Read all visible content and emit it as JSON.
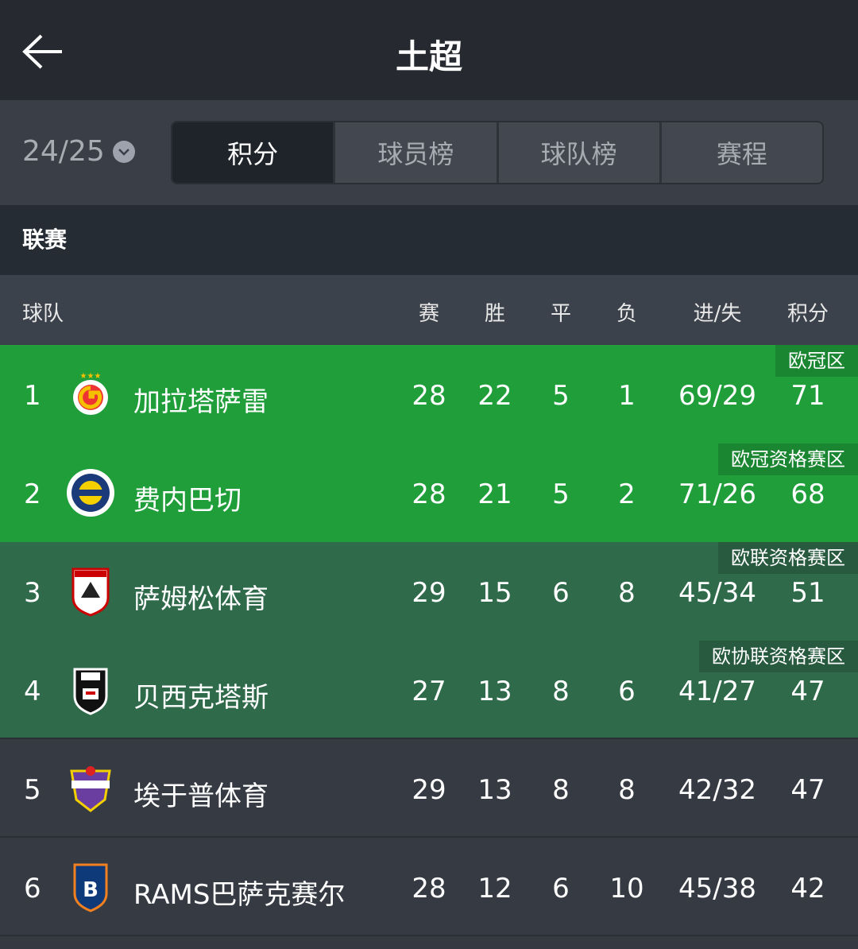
{
  "header": {
    "title": "土超",
    "back_icon": "arrow-left-icon"
  },
  "season": {
    "value": "24/25",
    "icon": "chevron-down-circle-icon"
  },
  "tabs": [
    {
      "label": "积分"
    },
    {
      "label": "球员榜"
    },
    {
      "label": "球队榜"
    },
    {
      "label": "赛程"
    }
  ],
  "section": "联赛",
  "columns": {
    "team": "球队",
    "played": "赛",
    "won": "胜",
    "drawn": "平",
    "lost": "负",
    "goals": "进/失",
    "points": "积分"
  },
  "colors": {
    "ucl": "#1f9e3a",
    "europe": "#2f6a4b",
    "normal": "#363b43"
  },
  "rows": [
    {
      "rank": "1",
      "name": "加拉塔萨雷",
      "played": "28",
      "won": "22",
      "drawn": "5",
      "lost": "1",
      "goals": "69/29",
      "points": "71",
      "zone": "欧冠区",
      "logo": "galatasaray-logo"
    },
    {
      "rank": "2",
      "name": "费内巴切",
      "played": "28",
      "won": "21",
      "drawn": "5",
      "lost": "2",
      "goals": "71/26",
      "points": "68",
      "zone": "欧冠资格赛区",
      "logo": "fenerbahce-logo"
    },
    {
      "rank": "3",
      "name": "萨姆松体育",
      "played": "29",
      "won": "15",
      "drawn": "6",
      "lost": "8",
      "goals": "45/34",
      "points": "51",
      "zone": "欧联资格赛区",
      "logo": "samsunspor-logo"
    },
    {
      "rank": "4",
      "name": "贝西克塔斯",
      "played": "27",
      "won": "13",
      "drawn": "8",
      "lost": "6",
      "goals": "41/27",
      "points": "47",
      "zone": "欧协联资格赛区",
      "logo": "besiktas-logo"
    },
    {
      "rank": "5",
      "name": "埃于普体育",
      "played": "29",
      "won": "13",
      "drawn": "8",
      "lost": "8",
      "goals": "42/32",
      "points": "47",
      "zone": "",
      "logo": "eyupspor-logo"
    },
    {
      "rank": "6",
      "name": "RAMS巴萨克赛尔",
      "played": "28",
      "won": "12",
      "drawn": "6",
      "lost": "10",
      "goals": "45/38",
      "points": "42",
      "zone": "",
      "logo": "basaksehir-logo"
    }
  ]
}
